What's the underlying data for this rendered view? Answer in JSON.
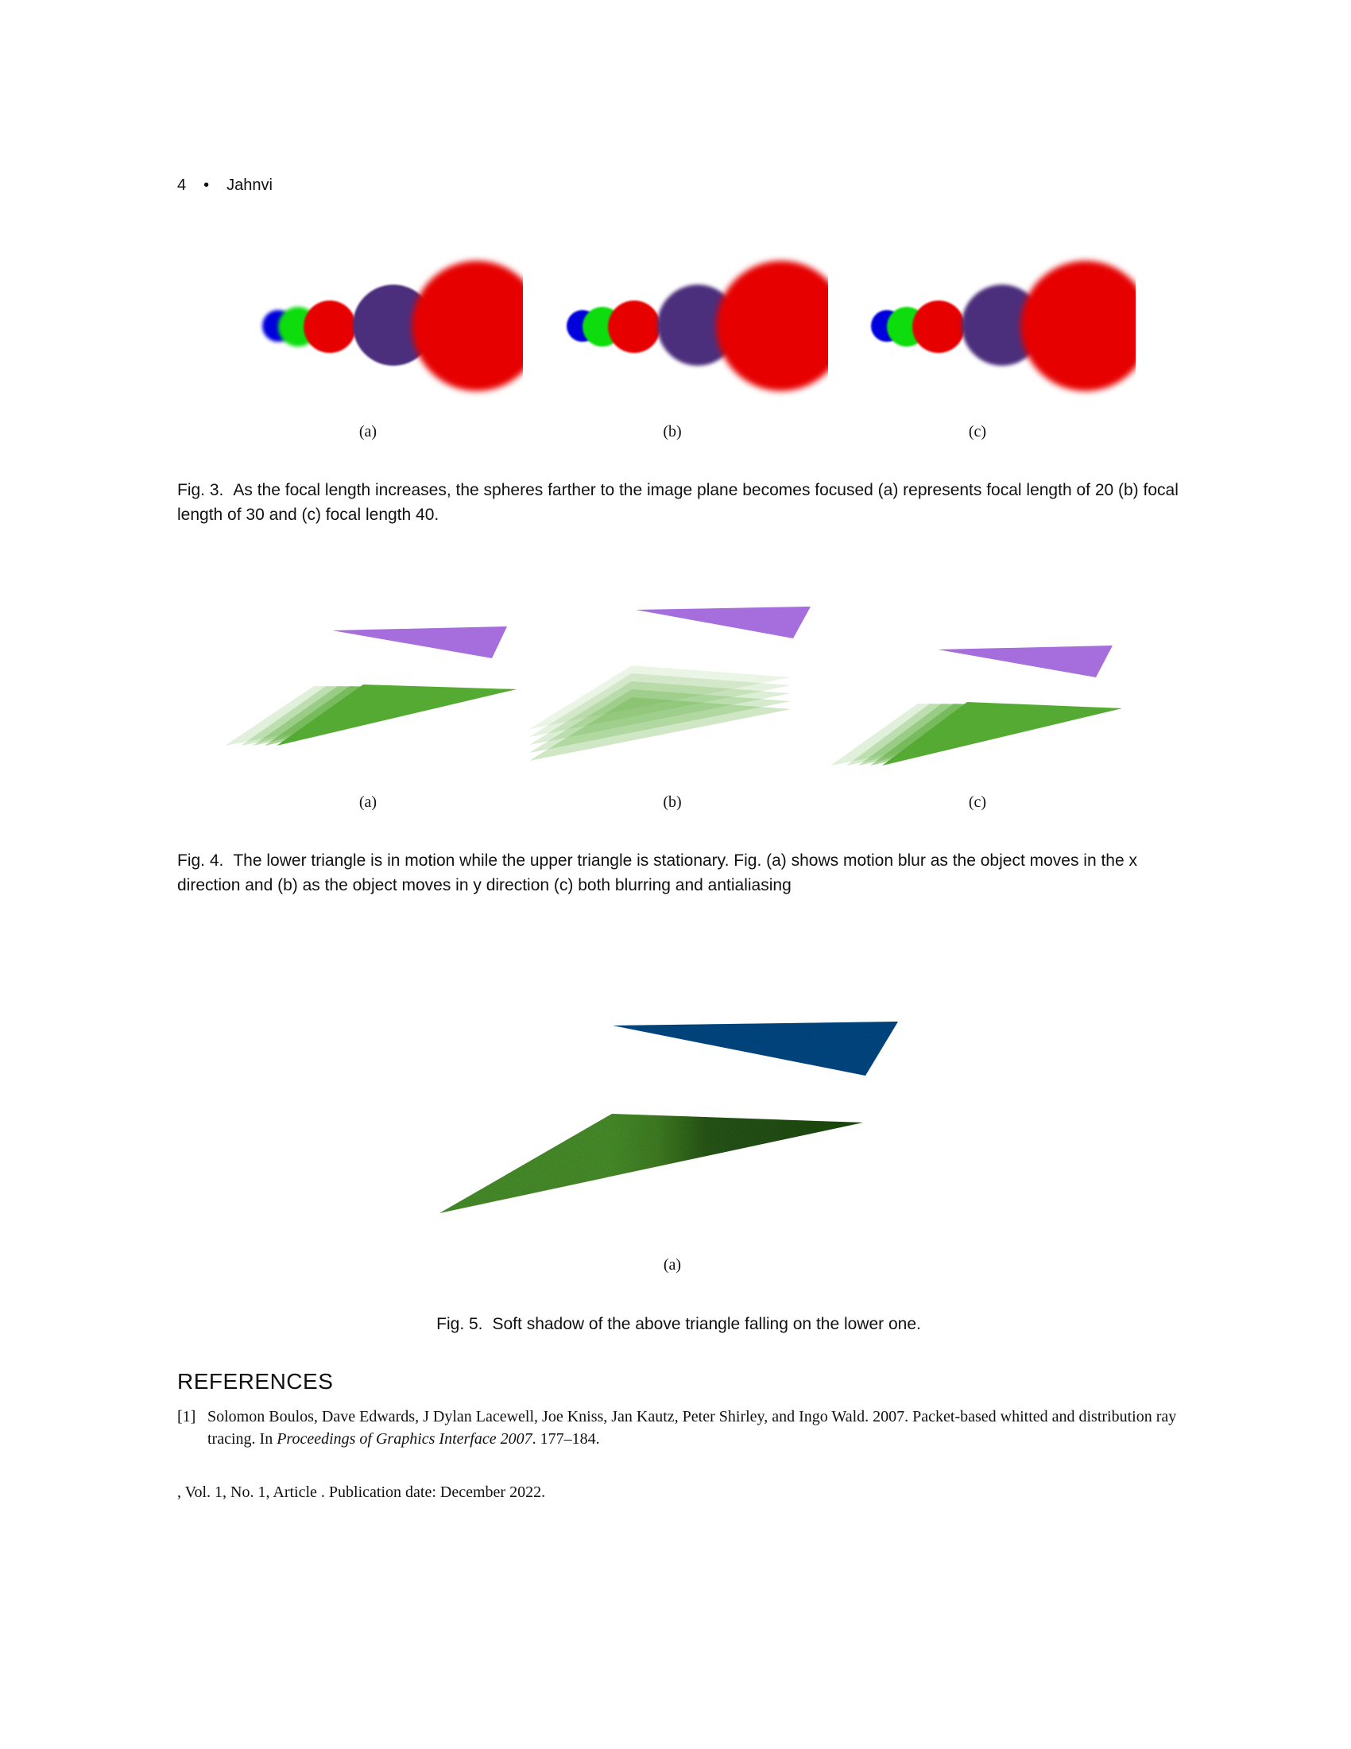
{
  "header": {
    "page_number": "4",
    "bullet": "•",
    "author": "Jahnvi"
  },
  "figure3": {
    "subfigures": [
      "(a)",
      "(b)",
      "(c)"
    ],
    "caption_label": "Fig. 3.",
    "caption_text": "As the focal length increases, the spheres farther to the image plane becomes focused (a) represents focal length of 20 (b) focal length of 30 and (c) focal length 40."
  },
  "figure4": {
    "subfigures": [
      "(a)",
      "(b)",
      "(c)"
    ],
    "caption_label": "Fig. 4.",
    "caption_text": "The lower triangle is in motion while the upper triangle is stationary. Fig. (a) shows motion blur as the object moves in the x direction and (b) as the object moves in y direction (c) both blurring and antialiasing"
  },
  "figure5": {
    "subfigures": [
      "(a)"
    ],
    "caption_label": "Fig. 5.",
    "caption_text": "Soft shadow of the above triangle falling on the lower one."
  },
  "references": {
    "heading": "REFERENCES",
    "items": [
      {
        "num": "[1]",
        "before": "Solomon Boulos, Dave Edwards, J Dylan Lacewell, Joe Kniss, Jan Kautz, Peter Shirley, and Ingo Wald. 2007. Packet-based whitted and distribution ray tracing. In ",
        "venue": "Proceedings of Graphics Interface 2007",
        "after": ". 177–184."
      }
    ]
  },
  "footer": {
    "text": ", Vol. 1, No. 1, Article . Publication date: December 2022."
  },
  "colors": {
    "red": "#e60000",
    "purple": "#4b2f7c",
    "green": "#11dd11",
    "blue": "#0000dd",
    "violet": "#a66ddd",
    "leaf_green": "#55aa33",
    "navy": "#0a4f8e",
    "dark_green": "#234f17"
  }
}
